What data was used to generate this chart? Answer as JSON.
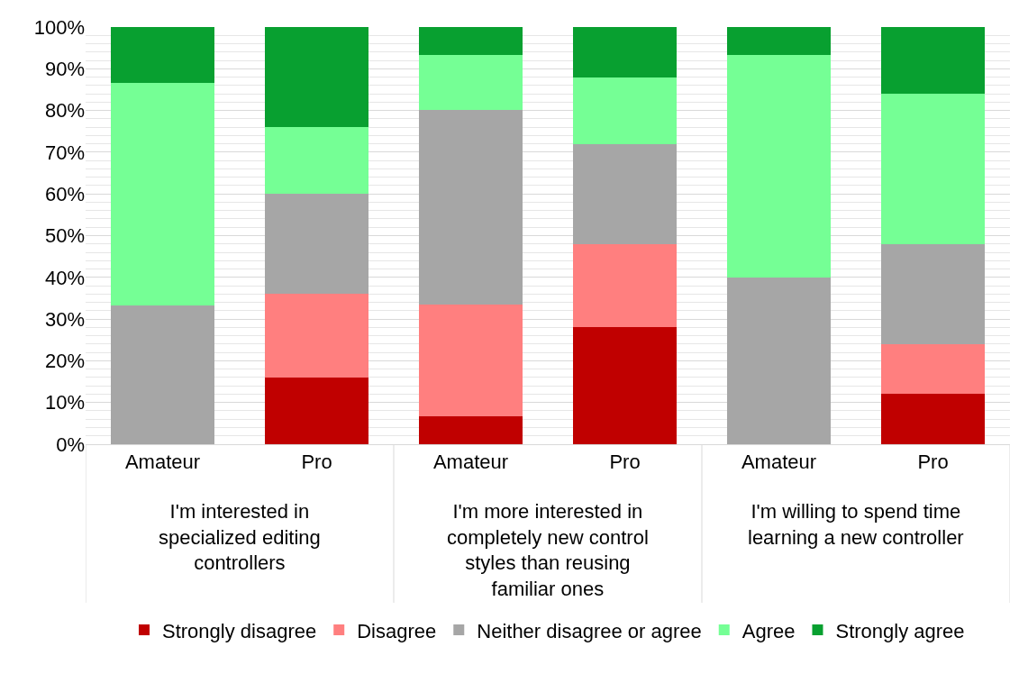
{
  "chart_data": {
    "type": "bar",
    "stacked": true,
    "categories": [
      "Amateur",
      "Pro",
      "Amateur",
      "Pro",
      "Amateur",
      "Pro"
    ],
    "annotations": [
      "I'm interested in specialized editing controllers",
      "I'm more interested in completely new control styles than reusing familiar ones",
      "I'm willing to spend time learning a new controller"
    ],
    "series": [
      {
        "name": "Strongly disagree",
        "color": "#c00000",
        "values": [
          0,
          16,
          6.7,
          28,
          0,
          12
        ]
      },
      {
        "name": "Disagree",
        "color": "#ff7f7f",
        "values": [
          0,
          20,
          26.7,
          20,
          0,
          12
        ]
      },
      {
        "name": "Neither disagree or agree",
        "color": "#a6a6a6",
        "values": [
          33.3,
          24,
          46.7,
          24,
          40,
          24
        ]
      },
      {
        "name": "Agree",
        "color": "#75ff95",
        "values": [
          53.3,
          16,
          13.3,
          16,
          53.3,
          36
        ]
      },
      {
        "name": "Strongly agree",
        "color": "#08a030",
        "values": [
          13.3,
          24,
          6.7,
          12,
          6.7,
          16
        ]
      }
    ],
    "ylim": [
      0,
      100
    ],
    "yticks": [
      {
        "value": 0,
        "label": "0%"
      },
      {
        "value": 10,
        "label": "10%"
      },
      {
        "value": 20,
        "label": "20%"
      },
      {
        "value": 30,
        "label": "30%"
      },
      {
        "value": 40,
        "label": "40%"
      },
      {
        "value": 50,
        "label": "50%"
      },
      {
        "value": 60,
        "label": "60%"
      },
      {
        "value": 70,
        "label": "70%"
      },
      {
        "value": 80,
        "label": "80%"
      },
      {
        "value": 90,
        "label": "90%"
      },
      {
        "value": 100,
        "label": "100%"
      }
    ],
    "grid": "y",
    "legend": "bottom"
  }
}
